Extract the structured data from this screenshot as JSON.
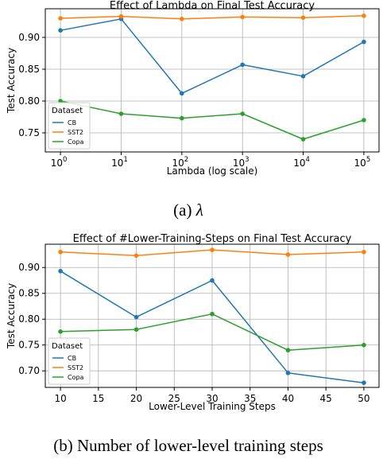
{
  "chart_data": [
    {
      "type": "line",
      "title": "Effect of Lambda on Final Test Accuracy",
      "xlabel": "Lambda (log scale)",
      "ylabel": "Test Accuracy",
      "x_scale": "log",
      "x": [
        1,
        10,
        100,
        1000,
        10000,
        100000
      ],
      "x_tick_labels": [
        {
          "base": "10",
          "exp": "0"
        },
        {
          "base": "10",
          "exp": "1"
        },
        {
          "base": "10",
          "exp": "2"
        },
        {
          "base": "10",
          "exp": "3"
        },
        {
          "base": "10",
          "exp": "4"
        },
        {
          "base": "10",
          "exp": "5"
        }
      ],
      "y_ticks": [
        "0.75",
        "0.80",
        "0.85",
        "0.90"
      ],
      "ylim": [
        0.72,
        0.945
      ],
      "grid": true,
      "legend": {
        "title": "Dataset",
        "placement": "lower-left"
      },
      "series": [
        {
          "name": "CB",
          "color": "#1f77b4",
          "values": [
            0.911,
            0.929,
            0.812,
            0.857,
            0.839,
            0.893
          ]
        },
        {
          "name": "SST2",
          "color": "#ff7f0e",
          "values": [
            0.93,
            0.933,
            0.929,
            0.932,
            0.931,
            0.934
          ]
        },
        {
          "name": "Copa",
          "color": "#2ca02c",
          "values": [
            0.8,
            0.78,
            0.773,
            0.78,
            0.74,
            0.77
          ]
        }
      ]
    },
    {
      "type": "line",
      "title": "Effect of #Lower-Training-Steps on Final Test Accuracy",
      "xlabel": "Lower-Level Training Steps",
      "ylabel": "Test Accuracy",
      "x": [
        10,
        20,
        30,
        40,
        50
      ],
      "x_ticks": [
        "10",
        "15",
        "20",
        "25",
        "30",
        "35",
        "40",
        "45",
        "50"
      ],
      "y_ticks": [
        "0.70",
        "0.75",
        "0.80",
        "0.85",
        "0.90"
      ],
      "xlim": [
        8,
        52
      ],
      "ylim": [
        0.668,
        0.945
      ],
      "grid": true,
      "legend": {
        "title": "Dataset",
        "placement": "lower-left"
      },
      "series": [
        {
          "name": "CB",
          "color": "#1f77b4",
          "values": [
            0.893,
            0.804,
            0.875,
            0.696,
            0.677
          ]
        },
        {
          "name": "SST2",
          "color": "#ff7f0e",
          "values": [
            0.93,
            0.923,
            0.934,
            0.925,
            0.93
          ]
        },
        {
          "name": "Copa",
          "color": "#2ca02c",
          "values": [
            0.776,
            0.78,
            0.81,
            0.74,
            0.75
          ]
        }
      ]
    }
  ],
  "captions": {
    "a": {
      "prefix": "(a) ",
      "symbol": "λ"
    },
    "b": "(b) Number of lower-level training steps"
  }
}
